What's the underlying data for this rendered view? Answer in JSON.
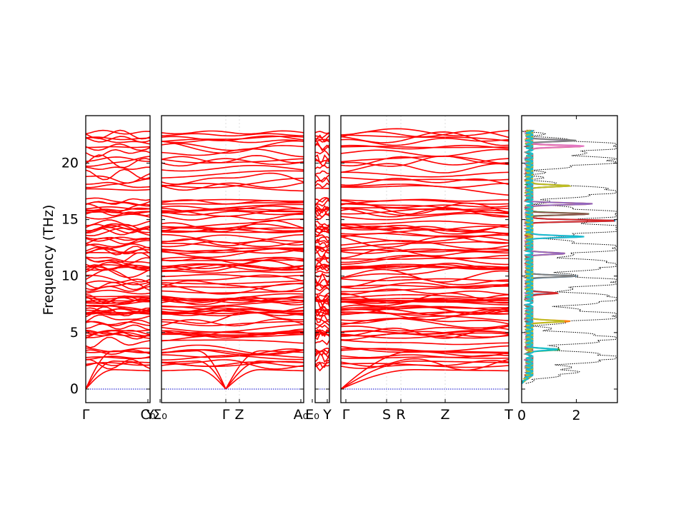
{
  "chart_data": {
    "type": "line",
    "ylabel": "Frequency (THz)",
    "ylim": [
      -1.2,
      24.2
    ],
    "y_ticks": [
      0,
      5,
      10,
      15,
      20
    ],
    "band_color": "#ff0000",
    "zero_line_color": "#0000cc",
    "segments": [
      {
        "name": "Γ–Y",
        "labels": [
          "Γ",
          "Y"
        ]
      },
      {
        "name": "C0–Σ0–Γ–Z–A0",
        "labels": [
          "C₀",
          "Σ₀",
          "Γ",
          "Z",
          "A₀"
        ]
      },
      {
        "name": "E0–Y",
        "labels": [
          "E₀",
          "Y"
        ]
      },
      {
        "name": "Γ–S–R–Z–T",
        "labels": [
          "Γ",
          "S",
          "R",
          "Z",
          "T"
        ]
      }
    ],
    "dos": {
      "xlim": [
        0,
        3.5
      ],
      "x_ticks": [
        0,
        2
      ],
      "total_color": "#000000",
      "partial_colors": [
        "#1f77b4",
        "#ff7f0e",
        "#2ca02c",
        "#d62728",
        "#9467bd",
        "#8c564b",
        "#e377c2",
        "#7f7f7f",
        "#bcbd22",
        "#17becf"
      ],
      "total_peaks": [
        {
          "freq": 21.5,
          "dos": 3.3
        },
        {
          "freq": 20.2,
          "dos": 3.0
        },
        {
          "freq": 17.5,
          "dos": 3.2
        },
        {
          "freq": 15.5,
          "dos": 3.3
        },
        {
          "freq": 14.2,
          "dos": 3.4
        },
        {
          "freq": 12.5,
          "dos": 3.2
        },
        {
          "freq": 11.0,
          "dos": 3.4
        },
        {
          "freq": 9.5,
          "dos": 3.2
        },
        {
          "freq": 8.0,
          "dos": 3.4
        },
        {
          "freq": 6.5,
          "dos": 3.3
        },
        {
          "freq": 4.5,
          "dos": 3.1
        },
        {
          "freq": 2.8,
          "dos": 3.2
        },
        {
          "freq": 1.5,
          "dos": 1.5
        }
      ],
      "partial_peaks": [
        {
          "freq": 14.9,
          "dos": 3.2
        },
        {
          "freq": 16.4,
          "dos": 2.2
        },
        {
          "freq": 15.5,
          "dos": 2.1
        },
        {
          "freq": 21.5,
          "dos": 2.0
        },
        {
          "freq": 22.0,
          "dos": 1.6
        },
        {
          "freq": 18.0,
          "dos": 1.5
        },
        {
          "freq": 13.5,
          "dos": 2.0
        },
        {
          "freq": 10.0,
          "dos": 1.6
        },
        {
          "freq": 6.0,
          "dos": 1.4
        },
        {
          "freq": 3.5,
          "dos": 1.0
        },
        {
          "freq": 8.5,
          "dos": 1.0
        },
        {
          "freq": 12.0,
          "dos": 1.2
        }
      ]
    }
  }
}
